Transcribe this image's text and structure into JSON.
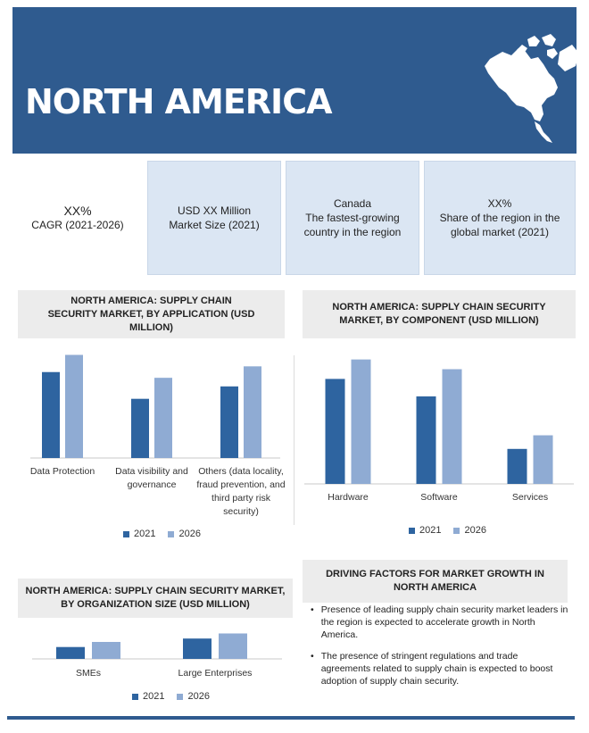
{
  "banner": {
    "title": "NORTH AMERICA"
  },
  "map_icon": "north-america-map",
  "colors": {
    "banner": "#2f5b8f",
    "series_2021": "#2e64a0",
    "series_2026": "#8fabd3",
    "kpi_bg": "#dbe6f3"
  },
  "kpis": [
    {
      "line1": "XX%",
      "line2": "CAGR (2021-2026)"
    },
    {
      "line1": "USD XX Million",
      "line2": "Market Size (2021)"
    },
    {
      "line1": "Canada",
      "line2": "The fastest-growing country in the region"
    },
    {
      "line1": "XX%",
      "line2": "Share of the region in the global market (2021)"
    }
  ],
  "panels": {
    "application_title": "NORTH AMERICA: SUPPLY CHAIN SECURITY MARKET, BY APPLICATION (USD MILLION)",
    "component_title": "NORTH AMERICA: SUPPLY CHAIN SECURITY MARKET, BY COMPONENT (USD MILLION)",
    "organization_title": "NORTH AMERICA: SUPPLY CHAIN SECURITY MARKET, BY ORGANIZATION SIZE (USD MILLION)",
    "drivers_title": "DRIVING FACTORS FOR MARKET GROWTH IN NORTH AMERICA"
  },
  "legend": {
    "s1": "2021",
    "s2": "2026"
  },
  "drivers": [
    "Presence of leading supply chain security market leaders in the region is expected to accelerate growth in North America.",
    "The presence of stringent regulations and trade agreements related to supply chain is expected to boost adoption of supply chain security."
  ],
  "chart_data": [
    {
      "type": "bar",
      "title": "NORTH AMERICA: SUPPLY CHAIN SECURITY MARKET, BY APPLICATION (USD MILLION)",
      "categories": [
        "Data Protection",
        "Data visibility and governance",
        "Others (data locality, fraud prevention, and third party risk security)"
      ],
      "series": [
        {
          "name": "2021",
          "values": [
            90,
            62,
            75
          ]
        },
        {
          "name": "2026",
          "values": [
            108,
            84,
            96
          ]
        }
      ],
      "ylim": [
        0,
        115
      ],
      "legend": "bottom"
    },
    {
      "type": "bar",
      "title": "NORTH AMERICA: SUPPLY CHAIN SECURITY MARKET, BY COMPONENT (USD MILLION)",
      "categories": [
        "Hardware",
        "Software",
        "Services"
      ],
      "series": [
        {
          "name": "2021",
          "values": [
            108,
            90,
            36
          ]
        },
        {
          "name": "2026",
          "values": [
            128,
            118,
            50
          ]
        }
      ],
      "ylim": [
        0,
        135
      ],
      "legend": "bottom"
    },
    {
      "type": "bar",
      "title": "NORTH AMERICA: SUPPLY CHAIN SECURITY MARKET, BY ORGANIZATION SIZE (USD MILLION)",
      "categories": [
        "SMEs",
        "Large Enterprises"
      ],
      "series": [
        {
          "name": "2021",
          "values": [
            7,
            12
          ]
        },
        {
          "name": "2026",
          "values": [
            10,
            15
          ]
        }
      ],
      "ylim": [
        0,
        20
      ],
      "legend": "bottom"
    }
  ]
}
